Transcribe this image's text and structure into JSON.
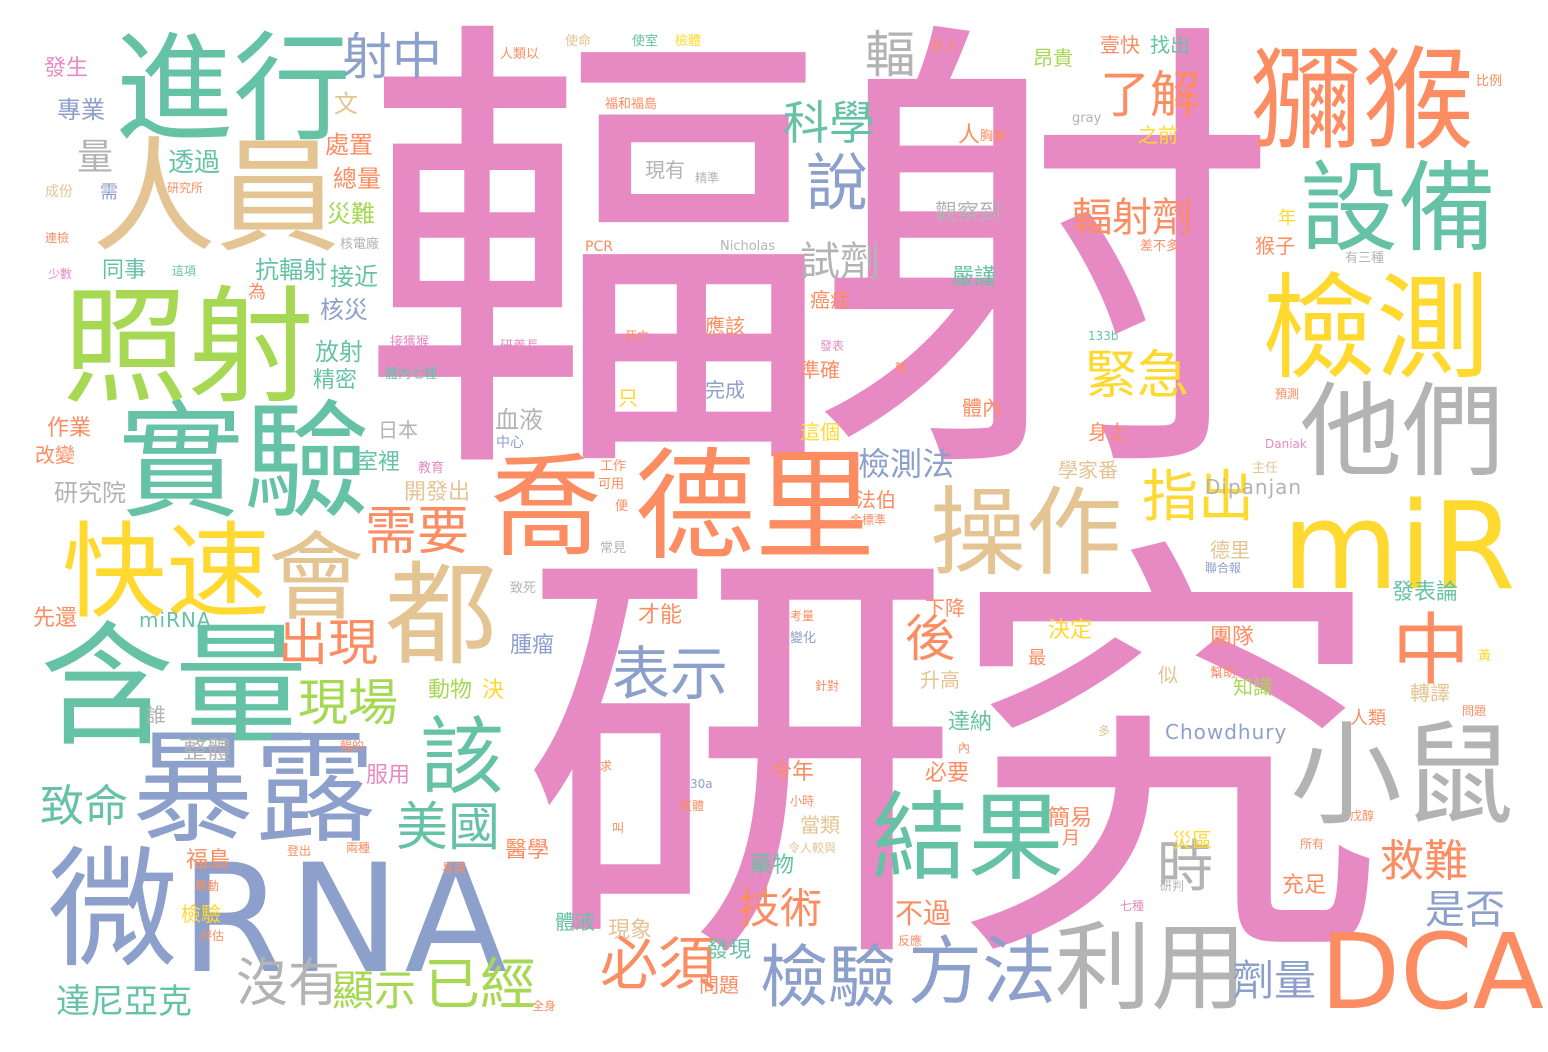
{
  "palette": {
    "pink": "#e78ac3",
    "orange": "#fc8d62",
    "teal": "#66c2a5",
    "blue": "#8da0cb",
    "green": "#a6d854",
    "yellow": "#ffd92f",
    "tan": "#e5c494",
    "gray": "#b3b3b3",
    "background": "#ffffff"
  },
  "words": {
    "w1": "輻射",
    "w2": "研究",
    "w3": "進行",
    "w4": "人員",
    "w5": "照射",
    "w6": "實驗",
    "w7": "快速",
    "w8": "含量",
    "w9": "暴露",
    "w10": "微",
    "w11": "RNA",
    "w12": "會",
    "w13": "都",
    "w14": "喬",
    "w15": "德里",
    "w16": "獼猴",
    "w17": "設備",
    "w18": "檢測",
    "w19": "他們",
    "w20": "miR",
    "w21": "小鼠",
    "w22": "DCA",
    "w23": "利用",
    "w24": "結果",
    "w25": "操作",
    "w26": "中",
    "w27": "該",
    "w28": "方法",
    "w29": "檢驗",
    "w30": "表示",
    "w31": "說",
    "w32": "射中",
    "w33": "科學",
    "w34": "了解",
    "w35": "輻射劑",
    "w36": "緊急",
    "w37": "指出",
    "w38": "需要",
    "w39": "出現",
    "w40": "現場",
    "w41": "美國",
    "w42": "後",
    "w43": "必須",
    "w44": "已經",
    "w45": "沒有",
    "w46": "顯示",
    "w47": "技術",
    "w48": "時",
    "w49": "救難",
    "w50": "是否",
    "w51": "劑量",
    "w52": "致命",
    "w53": "達尼亞克",
    "w54": "輻",
    "w55": "試劑",
    "w56": "檢測法",
    "w57": "量",
    "w58": "透過",
    "w59": "專業",
    "w60": "發生",
    "w61": "文",
    "w62": "處置",
    "w63": "總量",
    "w64": "災難",
    "w65": "同事",
    "w66": "抗輻射",
    "w67": "接近",
    "w68": "核災",
    "w69": "放射",
    "w70": "精密",
    "w71": "室裡",
    "w72": "開發出",
    "w73": "研究院",
    "w74": "作業",
    "w75": "改變",
    "w76": "日本",
    "w77": "血液",
    "w78": "中心",
    "w79": "先還",
    "w80": "miRNA",
    "w81": "動物",
    "w82": "決",
    "w83": "誰",
    "w84": "整體",
    "w85": "服用",
    "w86": "醫學",
    "w87": "福島",
    "w88": "檢驗",
    "w89": "體液",
    "w90": "現象",
    "w91": "腫瘤",
    "w92": "才能",
    "w93": "今年",
    "w94": "必要",
    "w95": "當類",
    "w96": "藥物",
    "w97": "發現",
    "w98": "問題",
    "w99": "不過",
    "w100": "下降",
    "w101": "升高",
    "w102": "達納",
    "w103": "決定",
    "w104": "最",
    "w105": "簡易",
    "w106": "月",
    "w107": "災區",
    "w108": "充足",
    "w109": "團隊",
    "w110": "知識",
    "w111": "轉譯",
    "w112": "發表論",
    "w113": "德里",
    "w114": "似",
    "w115": "人類",
    "w116": "Chowdhury",
    "w117": "Dipanjan",
    "w118": "學家番",
    "w119": "身上",
    "w120": "體內",
    "w121": "這個",
    "w122": "準確",
    "w123": "癌症",
    "w124": "嚴謹",
    "w125": "觀察到",
    "w126": "現有",
    "w127": "精準",
    "w128": "應該",
    "w129": "完成",
    "w130": "只",
    "w131": "死亡",
    "w132": "PCR",
    "w133": "Nicholas",
    "w134": "猴子",
    "w135": "年",
    "w136": "差不多",
    "w137": "有三種",
    "w138": "133b",
    "w139": "找出",
    "w140": "壹快",
    "w141": "昂貴",
    "w142": "之前",
    "w143": "非人",
    "w144": "於",
    "w145": "人類以",
    "w146": "使命",
    "w147": "使室",
    "w148": "檢體",
    "w149": "福和福島",
    "w150": "人",
    "w151": "胸腺",
    "w152": "gray",
    "w153": "比例",
    "w154": "研究所",
    "w155": "成份",
    "w156": "需",
    "w157": "連檢",
    "w158": "少數",
    "w159": "這項",
    "w160": "為",
    "w161": "核電廠",
    "w162": "教育",
    "w163": "工作",
    "w164": "可用",
    "w165": "便",
    "w166": "常見",
    "w167": "致死",
    "w168": "法伯",
    "w169": "金標準",
    "w170": "Daniak",
    "w171": "主任",
    "w172": "預測",
    "w173": "聯合報",
    "w174": "幫助",
    "w175": "黃",
    "w176": "內",
    "w177": "多",
    "w178": "30a",
    "w179": "小時",
    "w180": "研判",
    "w181": "戊醇",
    "w182": "所有",
    "w183": "七種",
    "w184": "反應",
    "w185": "兩種",
    "w186": "易度",
    "w187": "令人較與",
    "w188": "變化",
    "w189": "考量",
    "w190": "針對",
    "w191": "求",
    "w192": "叫",
    "w193": "舞動",
    "w194": "評估",
    "w195": "全身",
    "w196": "登出",
    "w197": "體內七種",
    "w198": "接獲猴",
    "w199": "研義長",
    "w200": "問題",
    "w201": "簡",
    "w202": "輻的",
    "w203": "質體",
    "w204": "發表"
  }
}
